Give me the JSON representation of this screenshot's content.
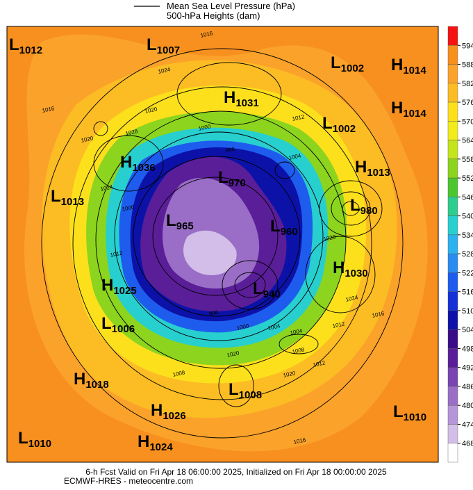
{
  "legend": {
    "mslp": "Mean Sea Level Pressure (hPa)",
    "heights": "500-hPa Heights (dam)"
  },
  "colorbar": {
    "ticks": [
      594,
      588,
      582,
      576,
      570,
      564,
      558,
      552,
      546,
      540,
      534,
      528,
      522,
      516,
      510,
      504,
      498,
      492,
      486,
      480,
      474,
      468
    ],
    "colors": [
      "#f41212",
      "#f7901e",
      "#fba22a",
      "#fcbc24",
      "#fde01c",
      "#f1ec1a",
      "#c4e41c",
      "#8cd41e",
      "#4cc62e",
      "#2ecc8e",
      "#28cfcf",
      "#2cb2ee",
      "#2a8cf0",
      "#1e5cee",
      "#1530d6",
      "#0c12a8",
      "#3a0c88",
      "#5a1e98",
      "#7a44b2",
      "#9a6ec6",
      "#b696d8",
      "#d2bee8",
      "#ffffff"
    ]
  },
  "centers": [
    {
      "type": "L",
      "value": 1012
    },
    {
      "type": "L",
      "value": 1007
    },
    {
      "type": "H",
      "value": 1031
    },
    {
      "type": "L",
      "value": 1002
    },
    {
      "type": "H",
      "value": 1014
    },
    {
      "type": "H",
      "value": 1014
    },
    {
      "type": "L",
      "value": 1002
    },
    {
      "type": "H",
      "value": 1013
    },
    {
      "type": "H",
      "value": 1036
    },
    {
      "type": "L",
      "value": 970
    },
    {
      "type": "L",
      "value": 1013
    },
    {
      "type": "L",
      "value": 980
    },
    {
      "type": "L",
      "value": 965
    },
    {
      "type": "L",
      "value": 960
    },
    {
      "type": "H",
      "value": 1030
    },
    {
      "type": "H",
      "value": 1025
    },
    {
      "type": "L",
      "value": 940
    },
    {
      "type": "L",
      "value": 1006
    },
    {
      "type": "H",
      "value": 1018
    },
    {
      "type": "L",
      "value": 1008
    },
    {
      "type": "H",
      "value": 1026
    },
    {
      "type": "L",
      "value": 1010
    },
    {
      "type": "L",
      "value": 1010
    },
    {
      "type": "H",
      "value": 1024
    }
  ],
  "isobar_labels": [
    1016,
    1024,
    1016,
    1020,
    1020,
    1028,
    1024,
    1000,
    996,
    1012,
    1004,
    1000,
    1012,
    1020,
    1024,
    1016,
    1012,
    1004,
    1000,
    996,
    1004,
    1008,
    1012,
    1020,
    1020,
    1016,
    1008
  ],
  "footer": {
    "line1": "6-h Fcst Valid on Fri Apr 18 06:00:00 2025, Initialized on Fri Apr 18 00:00:00 2025",
    "line2": "ECMWF-HRES - meteocentre.com"
  }
}
